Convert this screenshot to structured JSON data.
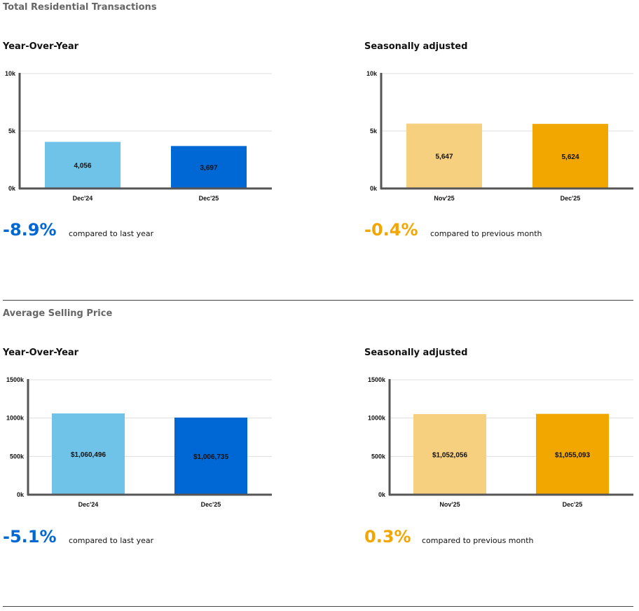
{
  "colors": {
    "light_blue": "#6fc3e8",
    "dark_blue": "#0068d4",
    "light_gold": "#f6d07f",
    "dark_gold": "#f2a600",
    "axis": "#555555",
    "grid": "#dddddd"
  },
  "sections": [
    {
      "title": "Total Residential Transactions",
      "panels": [
        {
          "title": "Year-Over-Year",
          "change": "-8.9%",
          "change_color": "#0068d4",
          "compare": "compared to last year"
        },
        {
          "title": "Seasonally adjusted",
          "change": "-0.4%",
          "change_color": "#f2a600",
          "compare": "compared to previous month"
        }
      ]
    },
    {
      "title": "Average Selling Price",
      "panels": [
        {
          "title": "Year-Over-Year",
          "change": "-5.1%",
          "change_color": "#0068d4",
          "compare": "compared to last year"
        },
        {
          "title": "Seasonally adjusted",
          "change": "0.3%",
          "change_color": "#f2a600",
          "compare": "compared to previous month"
        }
      ]
    }
  ],
  "chart_data": [
    {
      "type": "bar",
      "title": "Total Residential Transactions — Year-Over-Year",
      "categories": [
        "Dec'24",
        "Dec'25"
      ],
      "values": [
        4056,
        3697
      ],
      "value_labels": [
        "4,056",
        "3,697"
      ],
      "colors": [
        "#6fc3e8",
        "#0068d4"
      ],
      "ylim": [
        0,
        10000
      ],
      "yticks": [
        0,
        5000,
        10000
      ],
      "ytick_labels": [
        "0k",
        "5k",
        "10k"
      ]
    },
    {
      "type": "bar",
      "title": "Total Residential Transactions — Seasonally adjusted",
      "categories": [
        "Nov'25",
        "Dec'25"
      ],
      "values": [
        5647,
        5624
      ],
      "value_labels": [
        "5,647",
        "5,624"
      ],
      "colors": [
        "#f6d07f",
        "#f2a600"
      ],
      "ylim": [
        0,
        10000
      ],
      "yticks": [
        0,
        5000,
        10000
      ],
      "ytick_labels": [
        "0k",
        "5k",
        "10k"
      ]
    },
    {
      "type": "bar",
      "title": "Average Selling Price — Year-Over-Year",
      "categories": [
        "Dec'24",
        "Dec'25"
      ],
      "values": [
        1060496,
        1006735
      ],
      "value_labels": [
        "$1,060,496",
        "$1,006,735"
      ],
      "colors": [
        "#6fc3e8",
        "#0068d4"
      ],
      "ylim": [
        0,
        1500000
      ],
      "yticks": [
        0,
        500000,
        1000000,
        1500000
      ],
      "ytick_labels": [
        "0k",
        "500k",
        "1000k",
        "1500k"
      ]
    },
    {
      "type": "bar",
      "title": "Average Selling Price — Seasonally adjusted",
      "categories": [
        "Nov'25",
        "Dec'25"
      ],
      "values": [
        1052056,
        1055093
      ],
      "value_labels": [
        "$1,052,056",
        "$1,055,093"
      ],
      "colors": [
        "#f6d07f",
        "#f2a600"
      ],
      "ylim": [
        0,
        1500000
      ],
      "yticks": [
        0,
        500000,
        1000000,
        1500000
      ],
      "ytick_labels": [
        "0k",
        "500k",
        "1000k",
        "1500k"
      ]
    }
  ]
}
